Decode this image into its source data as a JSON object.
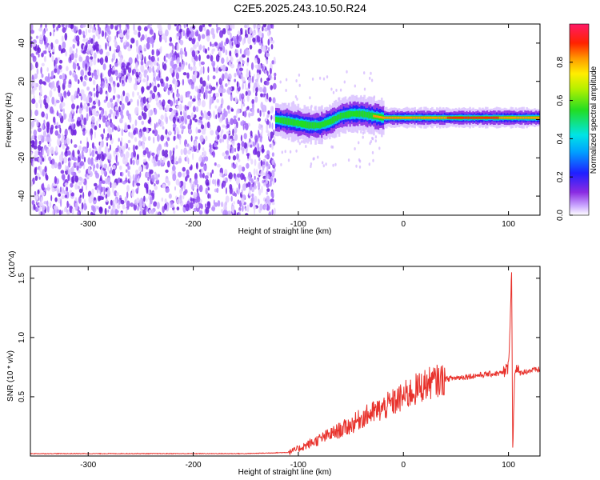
{
  "title": "C2E5.2025.243.10.50.R24",
  "chart_data": [
    {
      "type": "heatmap",
      "name": "spectrogram",
      "xlabel": "Height of straight line (km)",
      "ylabel": "Frequency (Hz)",
      "xlim": [
        -355,
        130
      ],
      "ylim": [
        -50,
        50
      ],
      "xticks": [
        -300,
        -200,
        -100,
        0,
        100
      ],
      "yticks": [
        -40,
        -20,
        0,
        20,
        40
      ],
      "noise_region_x": [
        -355,
        -122
      ],
      "signal_band": {
        "start_x": -122,
        "center_freq": [
          [
            -122,
            0
          ],
          [
            -110,
            -1
          ],
          [
            -100,
            -2
          ],
          [
            -90,
            -3
          ],
          [
            -80,
            -3
          ],
          [
            -70,
            -1
          ],
          [
            -60,
            2
          ],
          [
            -50,
            3
          ],
          [
            -40,
            3
          ],
          [
            -30,
            2
          ],
          [
            -20,
            1
          ],
          [
            0,
            1
          ],
          [
            20,
            1
          ],
          [
            40,
            1
          ],
          [
            60,
            1
          ],
          [
            80,
            1
          ],
          [
            100,
            1
          ],
          [
            130,
            1
          ]
        ]
      },
      "colorbar": {
        "label": "Normalized spectral amplitude",
        "range": [
          0,
          1
        ],
        "ticks": [
          "0.0",
          "0.2",
          "0.4",
          "0.6",
          "0.8"
        ]
      }
    },
    {
      "type": "line",
      "name": "snr",
      "xlabel": "Height of straight line (km)",
      "ylabel": "SNR (10 * v/v)",
      "y_multiplier": "(x10^4)",
      "xlim": [
        -355,
        130
      ],
      "ylim": [
        0,
        1.6
      ],
      "xticks": [
        -300,
        -200,
        -100,
        0,
        100
      ],
      "yticks": [
        "0.5",
        "1.0",
        "1.5"
      ],
      "color": "#e8322c",
      "series": [
        {
          "x": [
            -355,
            -300,
            -250,
            -200,
            -150,
            -110,
            -100,
            -90,
            -80,
            -70,
            -60,
            -50,
            -40,
            -30,
            -20,
            -10,
            0,
            10,
            20,
            30,
            40,
            60,
            80,
            95,
            100,
            103,
            104,
            106,
            110,
            120,
            130
          ],
          "y": [
            0.02,
            0.02,
            0.02,
            0.02,
            0.02,
            0.03,
            0.06,
            0.1,
            0.14,
            0.18,
            0.22,
            0.26,
            0.32,
            0.36,
            0.4,
            0.45,
            0.5,
            0.55,
            0.6,
            0.63,
            0.65,
            0.67,
            0.69,
            0.7,
            0.75,
            1.55,
            0.05,
            0.75,
            0.7,
            0.72,
            0.73
          ]
        }
      ]
    }
  ]
}
